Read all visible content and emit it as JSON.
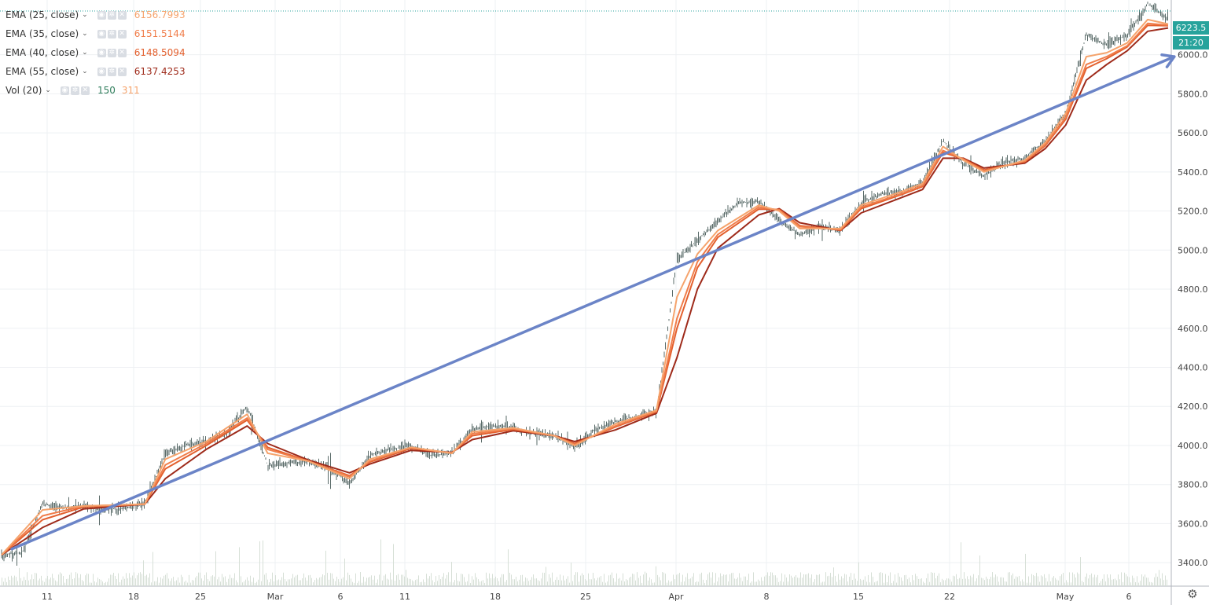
{
  "legend": [
    {
      "name": "EMA (25, close)",
      "value": "6156.7993",
      "color": "#f5a36c"
    },
    {
      "name": "EMA (35, close)",
      "value": "6151.5144",
      "color": "#f07d4a"
    },
    {
      "name": "EMA (40, close)",
      "value": "6148.5094",
      "color": "#e3602e"
    },
    {
      "name": "EMA (55, close)",
      "value": "6137.4253",
      "color": "#9e2a1a"
    },
    {
      "name": "Vol (20)",
      "value": "150",
      "value2": "311",
      "color": "#2e7d5b",
      "color2": "#f5a36c"
    }
  ],
  "price_tag": {
    "price": "6223.5",
    "timer": "21:20"
  },
  "colors": {
    "candle": "#5a6b69",
    "trendline": "#6b84c7",
    "ema25": "#f5a36c",
    "ema35": "#f07d4a",
    "ema40": "#e3602e",
    "ema55": "#9e2a1a",
    "volume": "#d6dfd6",
    "grid": "#eef0f3",
    "price_tag": "#27a39c"
  },
  "chart_data": {
    "type": "line",
    "y_axis_labels": [
      "6000.0",
      "5800.0",
      "5600.0",
      "5400.0",
      "5200.0",
      "5000.0",
      "4800.0",
      "4600.0",
      "4400.0",
      "4200.0",
      "4000.0",
      "3800.0",
      "3600.0",
      "3400.0"
    ],
    "x_axis_labels": [
      "11",
      "18",
      "25",
      "Mar",
      "6",
      "11",
      "18",
      "25",
      "Apr",
      "8",
      "15",
      "22",
      "May",
      "6"
    ],
    "ylim": [
      3280,
      6280
    ],
    "price_series": [
      [
        0,
        3440
      ],
      [
        1,
        3450
      ],
      [
        2,
        3700
      ],
      [
        3,
        3680
      ],
      [
        4,
        3690
      ],
      [
        5,
        3670
      ],
      [
        6,
        3680
      ],
      [
        7,
        3700
      ],
      [
        8,
        3960
      ],
      [
        9,
        4000
      ],
      [
        10,
        4020
      ],
      [
        11,
        4060
      ],
      [
        12,
        4200
      ],
      [
        13,
        3900
      ],
      [
        14,
        3910
      ],
      [
        15,
        3920
      ],
      [
        16,
        3880
      ],
      [
        17,
        3810
      ],
      [
        18,
        3950
      ],
      [
        19,
        3980
      ],
      [
        20,
        4000
      ],
      [
        21,
        3950
      ],
      [
        22,
        3960
      ],
      [
        23,
        4080
      ],
      [
        24,
        4100
      ],
      [
        25,
        4090
      ],
      [
        26,
        4060
      ],
      [
        27,
        4050
      ],
      [
        28,
        3990
      ],
      [
        29,
        4080
      ],
      [
        30,
        4120
      ],
      [
        31,
        4150
      ],
      [
        32,
        4170
      ],
      [
        33,
        4950
      ],
      [
        34,
        5050
      ],
      [
        35,
        5150
      ],
      [
        36,
        5240
      ],
      [
        37,
        5250
      ],
      [
        38,
        5150
      ],
      [
        39,
        5080
      ],
      [
        40,
        5120
      ],
      [
        41,
        5100
      ],
      [
        42,
        5240
      ],
      [
        43,
        5290
      ],
      [
        44,
        5300
      ],
      [
        45,
        5350
      ],
      [
        46,
        5560
      ],
      [
        47,
        5440
      ],
      [
        48,
        5380
      ],
      [
        49,
        5450
      ],
      [
        50,
        5470
      ],
      [
        51,
        5560
      ],
      [
        52,
        5700
      ],
      [
        53,
        6100
      ],
      [
        54,
        6050
      ],
      [
        55,
        6100
      ],
      [
        56,
        6260
      ],
      [
        57,
        6180
      ]
    ],
    "ema_series": [
      {
        "name": "EMA (25, close)",
        "values": [
          [
            0,
            3440
          ],
          [
            2,
            3670
          ],
          [
            4,
            3690
          ],
          [
            7,
            3700
          ],
          [
            8,
            3930
          ],
          [
            10,
            4020
          ],
          [
            12,
            4160
          ],
          [
            13,
            3960
          ],
          [
            15,
            3920
          ],
          [
            17,
            3830
          ],
          [
            18,
            3930
          ],
          [
            20,
            3990
          ],
          [
            22,
            3960
          ],
          [
            23,
            4070
          ],
          [
            25,
            4090
          ],
          [
            27,
            4050
          ],
          [
            28,
            4000
          ],
          [
            30,
            4110
          ],
          [
            32,
            4180
          ],
          [
            33,
            4760
          ],
          [
            34,
            4980
          ],
          [
            35,
            5100
          ],
          [
            37,
            5230
          ],
          [
            38,
            5200
          ],
          [
            39,
            5110
          ],
          [
            41,
            5110
          ],
          [
            42,
            5230
          ],
          [
            44,
            5300
          ],
          [
            45,
            5340
          ],
          [
            46,
            5530
          ],
          [
            47,
            5460
          ],
          [
            48,
            5400
          ],
          [
            50,
            5460
          ],
          [
            51,
            5550
          ],
          [
            52,
            5700
          ],
          [
            53,
            5990
          ],
          [
            54,
            6010
          ],
          [
            55,
            6060
          ],
          [
            56,
            6180
          ],
          [
            57,
            6157
          ]
        ]
      },
      {
        "name": "EMA (35, close)",
        "values": [
          [
            0,
            3440
          ],
          [
            2,
            3640
          ],
          [
            4,
            3690
          ],
          [
            7,
            3700
          ],
          [
            8,
            3900
          ],
          [
            10,
            4010
          ],
          [
            12,
            4140
          ],
          [
            13,
            3980
          ],
          [
            15,
            3920
          ],
          [
            17,
            3840
          ],
          [
            18,
            3920
          ],
          [
            20,
            3990
          ],
          [
            22,
            3960
          ],
          [
            23,
            4060
          ],
          [
            25,
            4085
          ],
          [
            27,
            4050
          ],
          [
            28,
            4005
          ],
          [
            30,
            4100
          ],
          [
            32,
            4175
          ],
          [
            33,
            4650
          ],
          [
            34,
            4940
          ],
          [
            35,
            5080
          ],
          [
            37,
            5220
          ],
          [
            38,
            5205
          ],
          [
            39,
            5120
          ],
          [
            41,
            5105
          ],
          [
            42,
            5220
          ],
          [
            44,
            5290
          ],
          [
            45,
            5330
          ],
          [
            46,
            5510
          ],
          [
            47,
            5465
          ],
          [
            48,
            5405
          ],
          [
            50,
            5455
          ],
          [
            51,
            5540
          ],
          [
            52,
            5680
          ],
          [
            53,
            5950
          ],
          [
            54,
            5990
          ],
          [
            55,
            6045
          ],
          [
            56,
            6160
          ],
          [
            57,
            6151
          ]
        ]
      },
      {
        "name": "EMA (40, close)",
        "values": [
          [
            0,
            3440
          ],
          [
            2,
            3620
          ],
          [
            4,
            3685
          ],
          [
            7,
            3700
          ],
          [
            8,
            3880
          ],
          [
            10,
            4000
          ],
          [
            12,
            4130
          ],
          [
            13,
            3990
          ],
          [
            15,
            3920
          ],
          [
            17,
            3845
          ],
          [
            18,
            3915
          ],
          [
            20,
            3985
          ],
          [
            22,
            3962
          ],
          [
            23,
            4050
          ],
          [
            25,
            4082
          ],
          [
            27,
            4050
          ],
          [
            28,
            4010
          ],
          [
            30,
            4095
          ],
          [
            32,
            4172
          ],
          [
            33,
            4600
          ],
          [
            34,
            4910
          ],
          [
            35,
            5065
          ],
          [
            37,
            5210
          ],
          [
            38,
            5208
          ],
          [
            39,
            5125
          ],
          [
            41,
            5102
          ],
          [
            42,
            5212
          ],
          [
            44,
            5285
          ],
          [
            45,
            5325
          ],
          [
            46,
            5500
          ],
          [
            47,
            5467
          ],
          [
            48,
            5410
          ],
          [
            50,
            5452
          ],
          [
            51,
            5535
          ],
          [
            52,
            5670
          ],
          [
            53,
            5930
          ],
          [
            54,
            5980
          ],
          [
            55,
            6040
          ],
          [
            56,
            6150
          ],
          [
            57,
            6148
          ]
        ]
      },
      {
        "name": "EMA (55, close)",
        "values": [
          [
            0,
            3440
          ],
          [
            2,
            3580
          ],
          [
            4,
            3675
          ],
          [
            7,
            3700
          ],
          [
            8,
            3830
          ],
          [
            10,
            3980
          ],
          [
            12,
            4100
          ],
          [
            13,
            4010
          ],
          [
            15,
            3925
          ],
          [
            17,
            3860
          ],
          [
            18,
            3905
          ],
          [
            20,
            3975
          ],
          [
            22,
            3965
          ],
          [
            23,
            4030
          ],
          [
            25,
            4075
          ],
          [
            27,
            4050
          ],
          [
            28,
            4020
          ],
          [
            30,
            4080
          ],
          [
            32,
            4165
          ],
          [
            33,
            4450
          ],
          [
            34,
            4800
          ],
          [
            35,
            5010
          ],
          [
            37,
            5180
          ],
          [
            38,
            5212
          ],
          [
            39,
            5140
          ],
          [
            41,
            5100
          ],
          [
            42,
            5190
          ],
          [
            44,
            5270
          ],
          [
            45,
            5310
          ],
          [
            46,
            5470
          ],
          [
            47,
            5470
          ],
          [
            48,
            5420
          ],
          [
            50,
            5445
          ],
          [
            51,
            5520
          ],
          [
            52,
            5640
          ],
          [
            53,
            5870
          ],
          [
            54,
            5950
          ],
          [
            55,
            6020
          ],
          [
            56,
            6120
          ],
          [
            57,
            6137
          ]
        ]
      }
    ],
    "trendline": [
      [
        0.5,
        3470
      ],
      [
        57.3,
        5990
      ]
    ],
    "current_price": 6223.5
  }
}
